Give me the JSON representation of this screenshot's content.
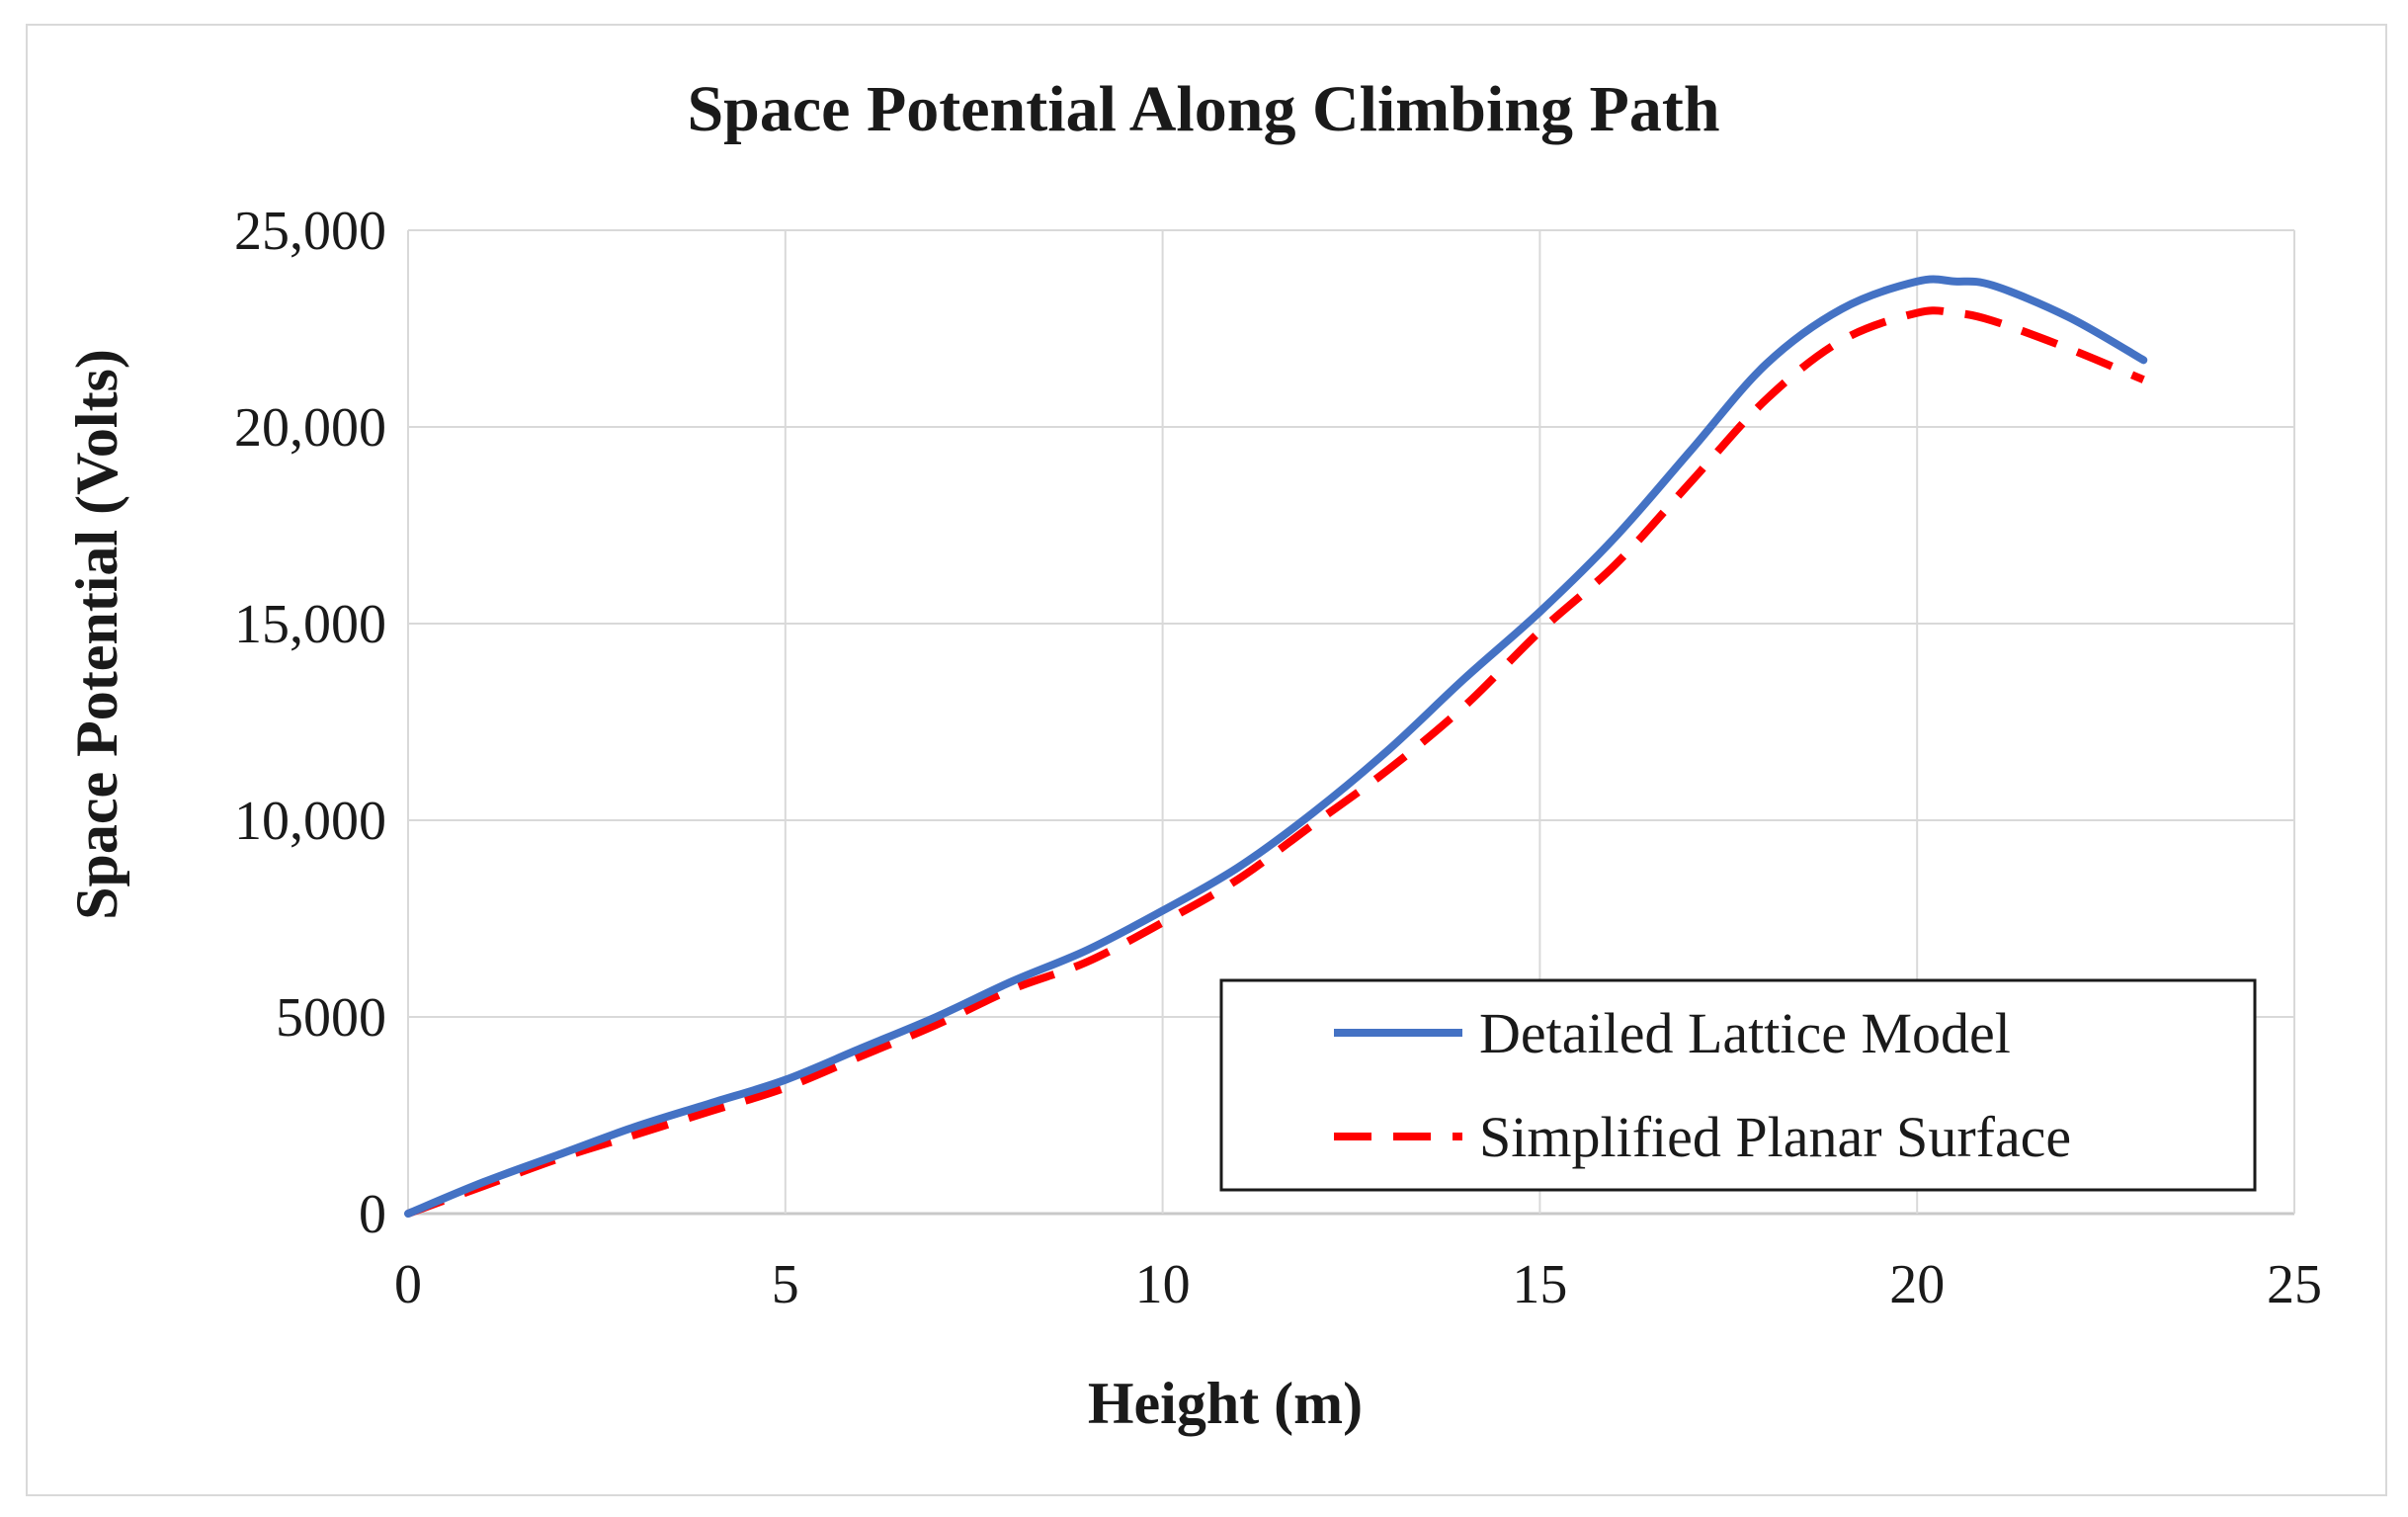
{
  "chart_data": {
    "type": "line",
    "title": "Space Potential Along Climbing Path",
    "xlabel": "Height (m)",
    "ylabel": "Space Potential (Volts)",
    "xlim": [
      0,
      25
    ],
    "ylim": [
      0,
      25000
    ],
    "x_ticks": [
      0,
      5,
      10,
      15,
      20,
      25
    ],
    "x_tick_labels": [
      "0",
      "5",
      "10",
      "15",
      "20",
      "25"
    ],
    "y_ticks": [
      0,
      5000,
      10000,
      15000,
      20000,
      25000
    ],
    "y_tick_labels": [
      "0",
      "5000",
      "10,000",
      "15,000",
      "20,000",
      "25,000"
    ],
    "grid": true,
    "legend_position": "bottom-right",
    "series": [
      {
        "name": "Detailed Lattice Model",
        "color": "#4472c4",
        "style": "solid",
        "x": [
          0,
          1,
          2,
          3,
          4,
          5,
          6,
          7,
          8,
          9,
          10,
          11,
          12,
          13,
          14,
          15,
          16,
          17,
          18,
          19,
          20,
          20.5,
          21,
          22,
          23
        ],
        "y": [
          0,
          800,
          1500,
          2200,
          2800,
          3400,
          4200,
          5000,
          5900,
          6700,
          7700,
          8800,
          10200,
          11800,
          13600,
          15300,
          17200,
          19400,
          21600,
          23000,
          23700,
          23700,
          23600,
          22800,
          21700
        ]
      },
      {
        "name": "Simplified Planar Surface",
        "color": "#ff0000",
        "style": "dashed",
        "x": [
          0,
          1,
          2,
          3,
          4,
          5,
          6,
          7,
          8,
          9,
          10,
          11,
          12,
          13,
          14,
          15,
          16,
          17,
          18,
          19,
          20,
          20.5,
          21,
          22,
          23
        ],
        "y": [
          0,
          700,
          1400,
          2000,
          2600,
          3200,
          4000,
          4800,
          5700,
          6400,
          7400,
          8500,
          9900,
          11300,
          12900,
          14800,
          16500,
          18600,
          20700,
          22200,
          22900,
          22900,
          22700,
          22000,
          21200
        ]
      }
    ]
  }
}
